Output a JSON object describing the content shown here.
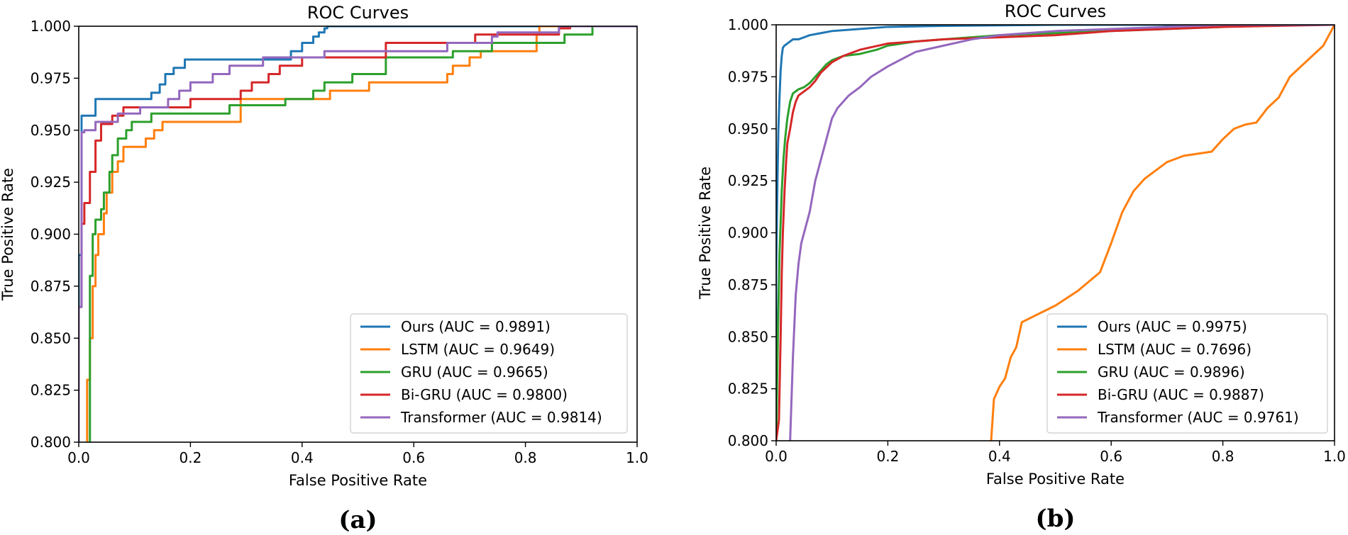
{
  "chart_data": [
    {
      "type": "line",
      "panel": "a",
      "caption": "(a)",
      "title": "ROC Curves",
      "xlabel": "False Positive Rate",
      "ylabel": "True Positive Rate",
      "xlim": [
        0.0,
        1.0
      ],
      "ylim": [
        0.8,
        1.0
      ],
      "xticks": [
        "0.0",
        "0.2",
        "0.4",
        "0.6",
        "0.8",
        "1.0"
      ],
      "yticks": [
        "0.800",
        "0.825",
        "0.850",
        "0.875",
        "0.900",
        "0.925",
        "0.950",
        "0.975",
        "1.000"
      ],
      "legend_position": "lower-right",
      "series": [
        {
          "name": "Ours (AUC = 0.9891)",
          "color": "#1f77b4",
          "x": [
            0.0,
            0.0,
            0.005,
            0.005,
            0.03,
            0.03,
            0.13,
            0.13,
            0.145,
            0.145,
            0.155,
            0.155,
            0.17,
            0.17,
            0.19,
            0.19,
            0.23,
            0.23,
            0.38,
            0.38,
            0.4,
            0.4,
            0.42,
            0.42,
            0.43,
            0.43,
            0.44,
            0.44,
            0.445,
            0.445,
            1.0
          ],
          "y": [
            0.8,
            0.89,
            0.89,
            0.957,
            0.957,
            0.965,
            0.965,
            0.968,
            0.968,
            0.972,
            0.972,
            0.977,
            0.977,
            0.98,
            0.98,
            0.984,
            0.984,
            0.984,
            0.984,
            0.988,
            0.988,
            0.992,
            0.992,
            0.995,
            0.995,
            0.997,
            0.997,
            0.999,
            0.999,
            1.0,
            1.0
          ]
        },
        {
          "name": "LSTM (AUC = 0.9649)",
          "color": "#ff7f0e",
          "x": [
            0.015,
            0.015,
            0.02,
            0.02,
            0.025,
            0.025,
            0.03,
            0.03,
            0.035,
            0.035,
            0.045,
            0.045,
            0.05,
            0.05,
            0.06,
            0.06,
            0.07,
            0.07,
            0.08,
            0.08,
            0.12,
            0.12,
            0.135,
            0.135,
            0.15,
            0.15,
            0.29,
            0.29,
            0.45,
            0.45,
            0.52,
            0.52,
            0.66,
            0.66,
            0.67,
            0.67,
            0.7,
            0.7,
            0.72,
            0.72,
            0.82,
            0.82,
            0.825,
            0.825,
            1.0
          ],
          "y": [
            0.8,
            0.83,
            0.83,
            0.85,
            0.85,
            0.875,
            0.875,
            0.89,
            0.89,
            0.9,
            0.9,
            0.91,
            0.91,
            0.92,
            0.92,
            0.93,
            0.93,
            0.935,
            0.935,
            0.942,
            0.942,
            0.946,
            0.946,
            0.95,
            0.95,
            0.954,
            0.954,
            0.965,
            0.965,
            0.969,
            0.969,
            0.973,
            0.973,
            0.977,
            0.977,
            0.981,
            0.981,
            0.985,
            0.985,
            0.988,
            0.988,
            0.996,
            0.996,
            1.0,
            1.0
          ]
        },
        {
          "name": "GRU (AUC = 0.9665)",
          "color": "#2ca02c",
          "x": [
            0.02,
            0.02,
            0.025,
            0.025,
            0.03,
            0.03,
            0.04,
            0.04,
            0.045,
            0.045,
            0.055,
            0.055,
            0.06,
            0.06,
            0.07,
            0.07,
            0.085,
            0.085,
            0.095,
            0.095,
            0.13,
            0.13,
            0.27,
            0.27,
            0.37,
            0.37,
            0.42,
            0.42,
            0.44,
            0.44,
            0.49,
            0.49,
            0.55,
            0.55,
            0.67,
            0.67,
            0.74,
            0.74,
            0.87,
            0.87,
            0.92,
            0.92,
            1.0
          ],
          "y": [
            0.8,
            0.88,
            0.88,
            0.9,
            0.9,
            0.907,
            0.907,
            0.912,
            0.912,
            0.92,
            0.92,
            0.93,
            0.93,
            0.938,
            0.938,
            0.946,
            0.946,
            0.95,
            0.95,
            0.954,
            0.954,
            0.958,
            0.958,
            0.962,
            0.962,
            0.965,
            0.965,
            0.969,
            0.969,
            0.973,
            0.973,
            0.977,
            0.977,
            0.985,
            0.985,
            0.988,
            0.988,
            0.992,
            0.992,
            0.996,
            0.996,
            1.0,
            1.0
          ]
        },
        {
          "name": "Bi-GRU (AUC = 0.9800)",
          "color": "#d62728",
          "x": [
            0.0,
            0.0,
            0.005,
            0.005,
            0.01,
            0.01,
            0.02,
            0.02,
            0.03,
            0.03,
            0.04,
            0.04,
            0.06,
            0.06,
            0.08,
            0.08,
            0.1,
            0.1,
            0.2,
            0.2,
            0.29,
            0.29,
            0.31,
            0.31,
            0.34,
            0.34,
            0.36,
            0.36,
            0.4,
            0.4,
            0.55,
            0.55,
            0.71,
            0.71,
            0.86,
            0.86,
            0.88,
            0.88,
            1.0
          ],
          "y": [
            0.8,
            0.865,
            0.865,
            0.905,
            0.905,
            0.915,
            0.915,
            0.93,
            0.93,
            0.945,
            0.945,
            0.953,
            0.953,
            0.957,
            0.957,
            0.961,
            0.961,
            0.961,
            0.961,
            0.965,
            0.965,
            0.969,
            0.969,
            0.973,
            0.973,
            0.977,
            0.977,
            0.981,
            0.981,
            0.985,
            0.985,
            0.992,
            0.992,
            0.996,
            0.996,
            0.999,
            0.999,
            1.0,
            1.0
          ]
        },
        {
          "name": "Transformer (AUC = 0.9814)",
          "color": "#9467bd",
          "x": [
            0.0,
            0.0,
            0.005,
            0.005,
            0.01,
            0.01,
            0.03,
            0.03,
            0.07,
            0.07,
            0.11,
            0.11,
            0.16,
            0.16,
            0.18,
            0.18,
            0.2,
            0.2,
            0.24,
            0.24,
            0.27,
            0.27,
            0.33,
            0.33,
            0.44,
            0.44,
            0.66,
            0.66,
            0.74,
            0.74,
            0.75,
            0.75,
            0.86,
            0.86,
            1.0
          ],
          "y": [
            0.8,
            0.865,
            0.865,
            0.949,
            0.949,
            0.95,
            0.95,
            0.954,
            0.954,
            0.958,
            0.958,
            0.961,
            0.961,
            0.965,
            0.965,
            0.969,
            0.969,
            0.973,
            0.973,
            0.977,
            0.977,
            0.981,
            0.981,
            0.985,
            0.985,
            0.988,
            0.988,
            0.992,
            0.992,
            0.995,
            0.995,
            0.997,
            0.997,
            1.0,
            1.0
          ]
        }
      ]
    },
    {
      "type": "line",
      "panel": "b",
      "caption": "(b)",
      "title": "ROC Curves",
      "xlabel": "False Positive Rate",
      "ylabel": "True Positive Rate",
      "xlim": [
        0.0,
        1.0
      ],
      "ylim": [
        0.8,
        1.0
      ],
      "xticks": [
        "0.0",
        "0.2",
        "0.4",
        "0.6",
        "0.8",
        "1.0"
      ],
      "yticks": [
        "0.800",
        "0.825",
        "0.850",
        "0.875",
        "0.900",
        "0.925",
        "0.950",
        "0.975",
        "1.000"
      ],
      "legend_position": "lower-right",
      "series": [
        {
          "name": "Ours (AUC = 0.9975)",
          "color": "#1f77b4",
          "x": [
            0.0,
            0.0,
            0.002,
            0.004,
            0.006,
            0.008,
            0.01,
            0.012,
            0.015,
            0.02,
            0.025,
            0.03,
            0.04,
            0.05,
            0.06,
            0.08,
            0.1,
            0.15,
            0.2,
            0.3,
            0.5,
            0.7,
            1.0
          ],
          "y": [
            0.8,
            0.88,
            0.92,
            0.95,
            0.965,
            0.978,
            0.985,
            0.989,
            0.99,
            0.991,
            0.992,
            0.993,
            0.993,
            0.994,
            0.995,
            0.996,
            0.997,
            0.998,
            0.999,
            0.9995,
            1.0,
            1.0,
            1.0
          ]
        },
        {
          "name": "LSTM (AUC = 0.7696)",
          "color": "#ff7f0e",
          "x": [
            0.385,
            0.39,
            0.395,
            0.4,
            0.41,
            0.42,
            0.43,
            0.44,
            0.5,
            0.54,
            0.58,
            0.6,
            0.62,
            0.64,
            0.66,
            0.7,
            0.73,
            0.78,
            0.8,
            0.82,
            0.84,
            0.86,
            0.88,
            0.9,
            0.92,
            0.94,
            0.96,
            0.98,
            1.0
          ],
          "y": [
            0.8,
            0.82,
            0.823,
            0.826,
            0.83,
            0.84,
            0.845,
            0.857,
            0.865,
            0.872,
            0.881,
            0.895,
            0.91,
            0.92,
            0.926,
            0.934,
            0.937,
            0.939,
            0.945,
            0.95,
            0.952,
            0.953,
            0.96,
            0.965,
            0.975,
            0.98,
            0.985,
            0.99,
            1.0
          ]
        },
        {
          "name": "GRU (AUC = 0.9896)",
          "color": "#2ca02c",
          "x": [
            0.0,
            0.003,
            0.006,
            0.01,
            0.013,
            0.016,
            0.02,
            0.025,
            0.03,
            0.04,
            0.05,
            0.06,
            0.07,
            0.08,
            0.09,
            0.1,
            0.12,
            0.15,
            0.18,
            0.2,
            0.25,
            0.3,
            0.35,
            0.4,
            0.5,
            0.6,
            0.7,
            0.8,
            0.85,
            1.0
          ],
          "y": [
            0.8,
            0.85,
            0.89,
            0.92,
            0.935,
            0.945,
            0.955,
            0.963,
            0.967,
            0.969,
            0.97,
            0.972,
            0.975,
            0.978,
            0.981,
            0.983,
            0.985,
            0.986,
            0.988,
            0.99,
            0.992,
            0.993,
            0.994,
            0.995,
            0.996,
            0.997,
            0.998,
            0.999,
            1.0,
            1.0
          ]
        },
        {
          "name": "Bi-GRU (AUC = 0.9887)",
          "color": "#d62728",
          "x": [
            0.0,
            0.005,
            0.008,
            0.01,
            0.012,
            0.015,
            0.018,
            0.02,
            0.025,
            0.03,
            0.035,
            0.04,
            0.05,
            0.06,
            0.07,
            0.08,
            0.1,
            0.12,
            0.15,
            0.2,
            0.25,
            0.3,
            0.4,
            0.5,
            0.6,
            0.7,
            0.8,
            1.0
          ],
          "y": [
            0.8,
            0.81,
            0.85,
            0.88,
            0.9,
            0.92,
            0.935,
            0.943,
            0.95,
            0.958,
            0.963,
            0.966,
            0.968,
            0.97,
            0.973,
            0.977,
            0.982,
            0.985,
            0.988,
            0.991,
            0.992,
            0.993,
            0.994,
            0.995,
            0.997,
            0.998,
            0.999,
            1.0
          ]
        },
        {
          "name": "Transformer (AUC = 0.9761)",
          "color": "#9467bd",
          "x": [
            0.025,
            0.03,
            0.035,
            0.04,
            0.045,
            0.05,
            0.06,
            0.07,
            0.08,
            0.09,
            0.1,
            0.11,
            0.12,
            0.13,
            0.15,
            0.17,
            0.2,
            0.25,
            0.3,
            0.35,
            0.4,
            0.45,
            0.5,
            0.6,
            0.7,
            0.8,
            1.0
          ],
          "y": [
            0.8,
            0.84,
            0.87,
            0.885,
            0.895,
            0.9,
            0.91,
            0.925,
            0.935,
            0.945,
            0.955,
            0.96,
            0.963,
            0.966,
            0.97,
            0.975,
            0.98,
            0.987,
            0.99,
            0.993,
            0.995,
            0.996,
            0.997,
            0.998,
            0.999,
            1.0,
            1.0
          ]
        }
      ]
    }
  ]
}
